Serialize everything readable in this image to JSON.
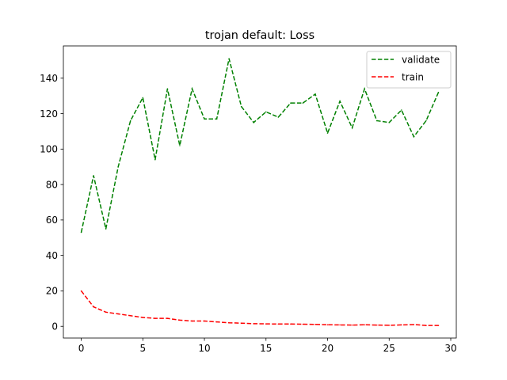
{
  "chart_data": {
    "type": "line",
    "title": "trojan default: Loss",
    "xlabel": "",
    "ylabel": "",
    "xlim": [
      -1.45,
      30.45
    ],
    "ylim": [
      -6.6,
      158.2
    ],
    "xticks": [
      0,
      5,
      10,
      15,
      20,
      25,
      30
    ],
    "yticks": [
      0,
      20,
      40,
      60,
      80,
      100,
      120,
      140
    ],
    "grid": false,
    "legend_position": "top-right",
    "x": [
      0,
      1,
      2,
      3,
      4,
      5,
      6,
      7,
      8,
      9,
      10,
      11,
      12,
      13,
      14,
      15,
      16,
      17,
      18,
      19,
      20,
      21,
      22,
      23,
      24,
      25,
      26,
      27,
      28,
      29
    ],
    "series": [
      {
        "name": "validate",
        "color": "#008000",
        "line_style": "dashed",
        "values": [
          53,
          85,
          55,
          90,
          116,
          129,
          94,
          134,
          102,
          134,
          117,
          117,
          151,
          124,
          115,
          121,
          118,
          126,
          126,
          131,
          109,
          127,
          112,
          134,
          116,
          115,
          122,
          107,
          116,
          132
        ]
      },
      {
        "name": "train",
        "color": "#ff0000",
        "line_style": "dashed",
        "values": [
          20,
          11,
          8,
          7,
          6,
          5,
          4.5,
          4.5,
          3.5,
          3,
          3,
          2.5,
          2,
          1.8,
          1.5,
          1.4,
          1.3,
          1.3,
          1.2,
          1.1,
          0.9,
          0.8,
          0.7,
          0.9,
          0.7,
          0.6,
          0.8,
          1,
          0.5,
          0.5
        ]
      }
    ]
  }
}
